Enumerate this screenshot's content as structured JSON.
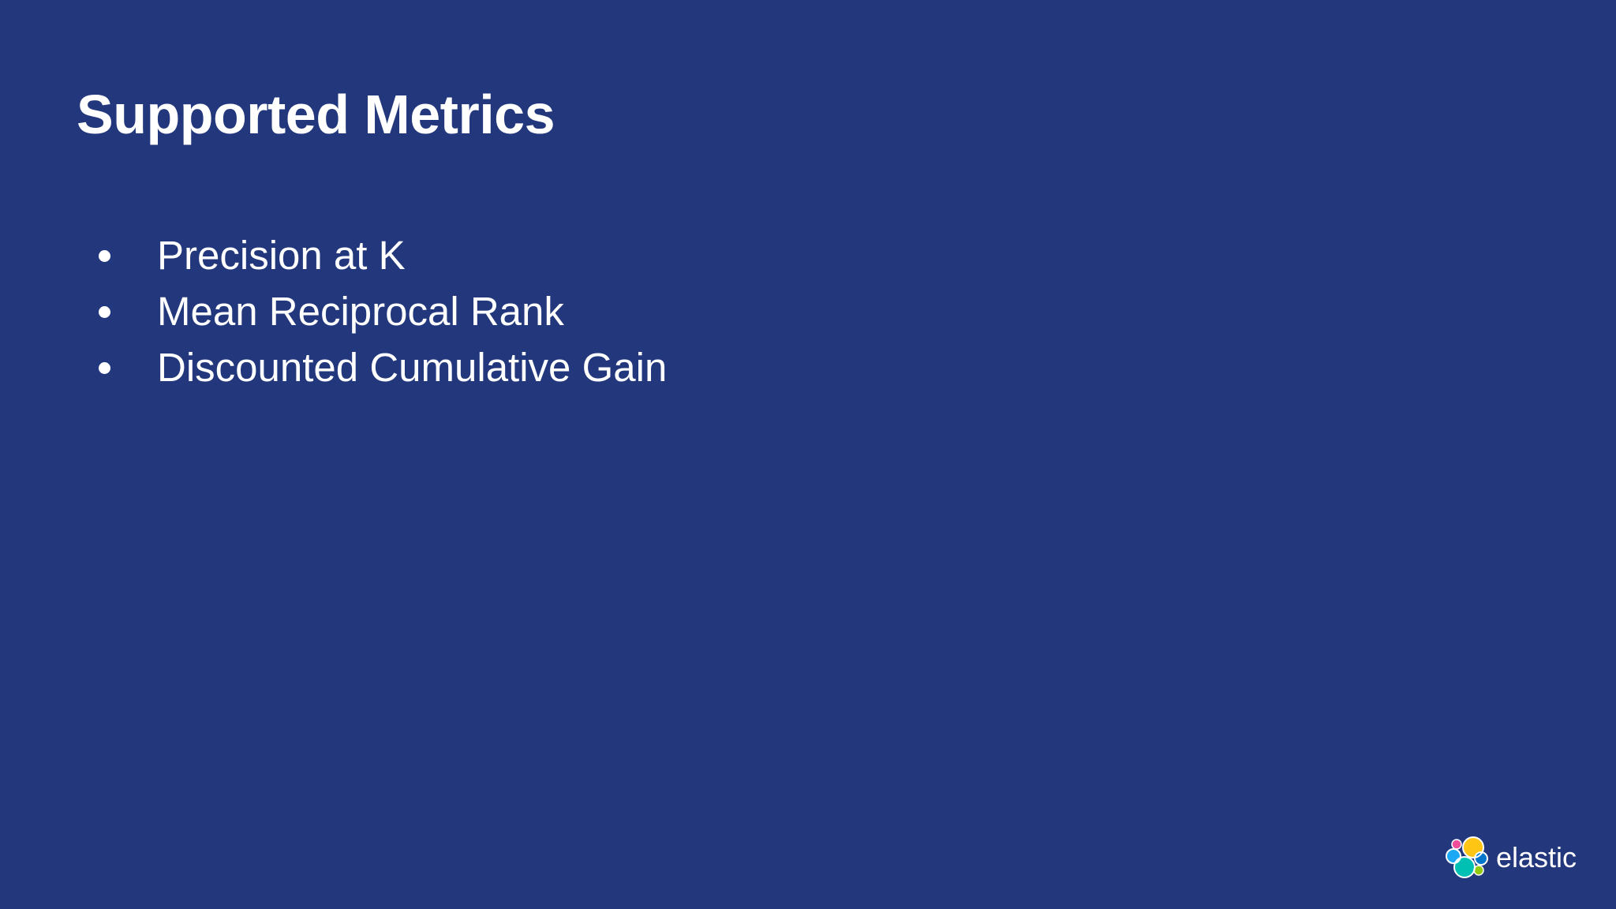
{
  "slide": {
    "title": "Supported Metrics",
    "bullets": [
      {
        "label": "Precision at K"
      },
      {
        "label": "Mean Reciprocal Rank"
      },
      {
        "label": "Discounted Cumulative Gain"
      }
    ]
  },
  "logo": {
    "icon": "elastic-logo-icon",
    "text": "elastic"
  },
  "colors": {
    "background": "#22377c",
    "text": "#ffffff",
    "logo_yellow": "#fec514",
    "logo_pink": "#f04e98",
    "logo_teal": "#00bfb3",
    "logo_blue": "#1ba9f5",
    "logo_green": "#93c90e",
    "logo_navy": "#0077cc"
  }
}
